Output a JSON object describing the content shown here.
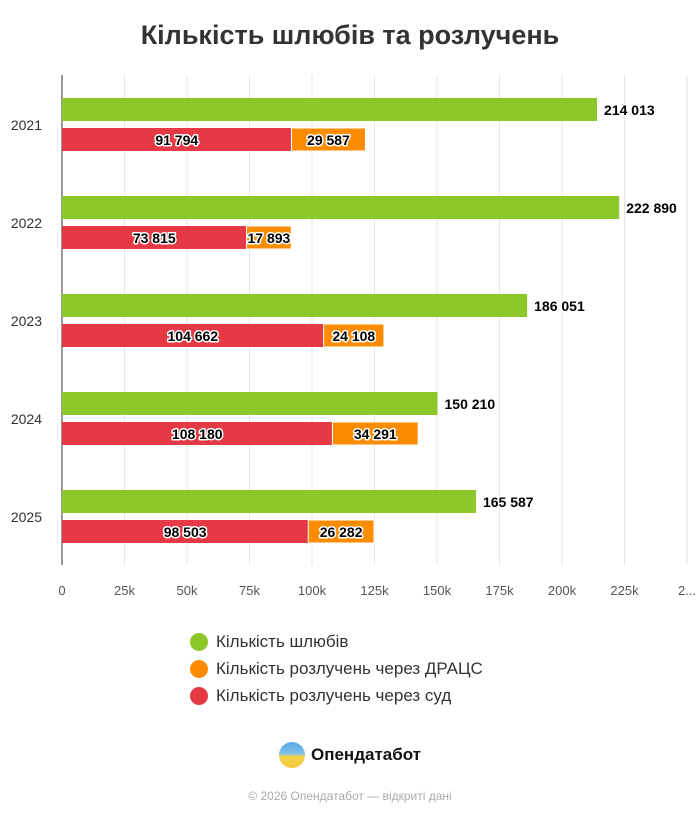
{
  "chart_data": {
    "type": "bar",
    "orientation": "horizontal",
    "title": "Кількість шлюбів та розлучень",
    "categories": [
      "2021",
      "2022",
      "2023",
      "2024",
      "2025"
    ],
    "series": [
      {
        "name": "Кількість шлюбів",
        "color": "#8cc82a",
        "values": [
          214013,
          222890,
          186051,
          150210,
          165587
        ],
        "stack": "marriages"
      },
      {
        "name": "Кількість розлучень через суд",
        "color": "#e63946",
        "values": [
          91794,
          73815,
          104662,
          108180,
          98503
        ],
        "stack": "divorces"
      },
      {
        "name": "Кількість розлучень через ДРАЦС",
        "color": "#fb8c00",
        "values": [
          29587,
          17893,
          24108,
          34291,
          26282
        ],
        "stack": "divorces"
      }
    ],
    "data_labels": {
      "marriages": [
        "214 013",
        "222 890",
        "186 051",
        "150 210",
        "165 587"
      ],
      "court": [
        "91 794",
        "73 815",
        "104 662",
        "108 180",
        "98 503"
      ],
      "dracs": [
        "29 587",
        "17 893",
        "24 108",
        "34 291",
        "26 282"
      ]
    },
    "xlim": [
      0,
      250000
    ],
    "x_ticks": [
      "0",
      "25k",
      "50k",
      "75k",
      "100k",
      "125k",
      "150k",
      "175k",
      "200k",
      "225k",
      "2..."
    ],
    "grid": true,
    "legend_position": "bottom",
    "legend": [
      "Кількість шлюбів",
      "Кількість розлучень через ДРАЦС",
      "Кількість розлучень через суд"
    ]
  },
  "legend_colors": [
    "#8cc82a",
    "#fb8c00",
    "#e63946"
  ],
  "brand": {
    "name": "Опендатабот",
    "copyright": "© 2026 Опендатабот — відкриті дані"
  }
}
